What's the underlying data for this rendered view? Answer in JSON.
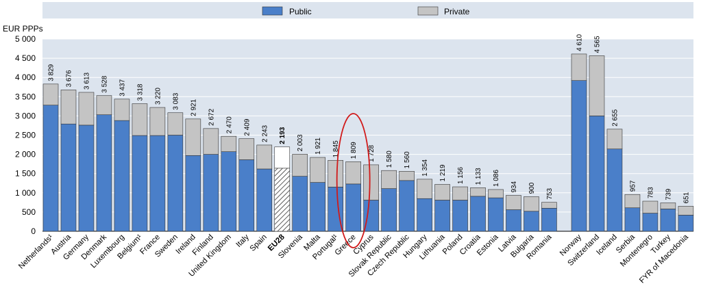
{
  "chart_data": {
    "type": "bar",
    "stacked": true,
    "ylabel": "EUR PPPs",
    "ylim": [
      0,
      5000
    ],
    "yticks": [
      0,
      500,
      1000,
      1500,
      2000,
      2500,
      3000,
      3500,
      4000,
      4500,
      5000
    ],
    "ytick_labels": [
      "0",
      "500",
      "1 000",
      "1 500",
      "2 000",
      "2 500",
      "3 000",
      "3 500",
      "4 000",
      "4 500",
      "5 000"
    ],
    "grid": true,
    "legend": {
      "placement": "top",
      "entries": [
        "Public",
        "Private"
      ]
    },
    "colors": {
      "Public": "#4a7fc9",
      "Private": "#c4c4c4",
      "grid": "#ffffff",
      "plot_bg": "#dce4ee",
      "highlight": "#d11a1a"
    },
    "highlighted_category": "Greece",
    "group_break_after": "Romania",
    "categories": [
      "Netherlands¹",
      "Austria",
      "Germany",
      "Denmark",
      "Luxembourg",
      "Belgium¹",
      "France",
      "Sweden",
      "Ireland",
      "Finland",
      "United Kingdom",
      "Italy",
      "Spain",
      "EU28",
      "Slovenia",
      "Malta",
      "Portugal¹",
      "Greece",
      "Cyprus",
      "Slovak Republic",
      "Czech Republic",
      "Hungary",
      "Lithuania",
      "Poland",
      "Croatia",
      "Estonia",
      "Latvia",
      "Bulgaria",
      "Romania",
      "Norway",
      "Switzerland",
      "Iceland",
      "Serbia",
      "Montenegro",
      "Turkey",
      "FYR of Macedonia"
    ],
    "total_labels": [
      "3 829",
      "3 676",
      "3 613",
      "3 528",
      "3 437",
      "3 318",
      "3 220",
      "3 083",
      "2 921",
      "2 672",
      "2 470",
      "2 409",
      "2 243",
      "2 193",
      "2 003",
      "1 921",
      "1 845",
      "1 809",
      "1 728",
      "1 580",
      "1 560",
      "1 354",
      "1 219",
      "1 156",
      "1 133",
      "1 086",
      "934",
      "900",
      "753",
      "4 610",
      "4 565",
      "2 655",
      "957",
      "783",
      "739",
      "651"
    ],
    "series": [
      {
        "name": "Public",
        "values": [
          3280,
          2790,
          2760,
          3030,
          2880,
          2490,
          2490,
          2500,
          1970,
          2000,
          2070,
          1860,
          1620,
          1640,
          1430,
          1270,
          1150,
          1230,
          810,
          1110,
          1320,
          850,
          810,
          810,
          910,
          870,
          560,
          520,
          600,
          3920,
          3000,
          2140,
          610,
          470,
          580,
          420
        ]
      },
      {
        "name": "Private",
        "values": [
          549,
          886,
          853,
          498,
          557,
          828,
          730,
          583,
          951,
          672,
          400,
          549,
          623,
          553,
          573,
          651,
          695,
          579,
          918,
          470,
          240,
          504,
          409,
          346,
          223,
          216,
          374,
          380,
          153,
          690,
          1565,
          515,
          347,
          313,
          159,
          231
        ]
      }
    ]
  }
}
